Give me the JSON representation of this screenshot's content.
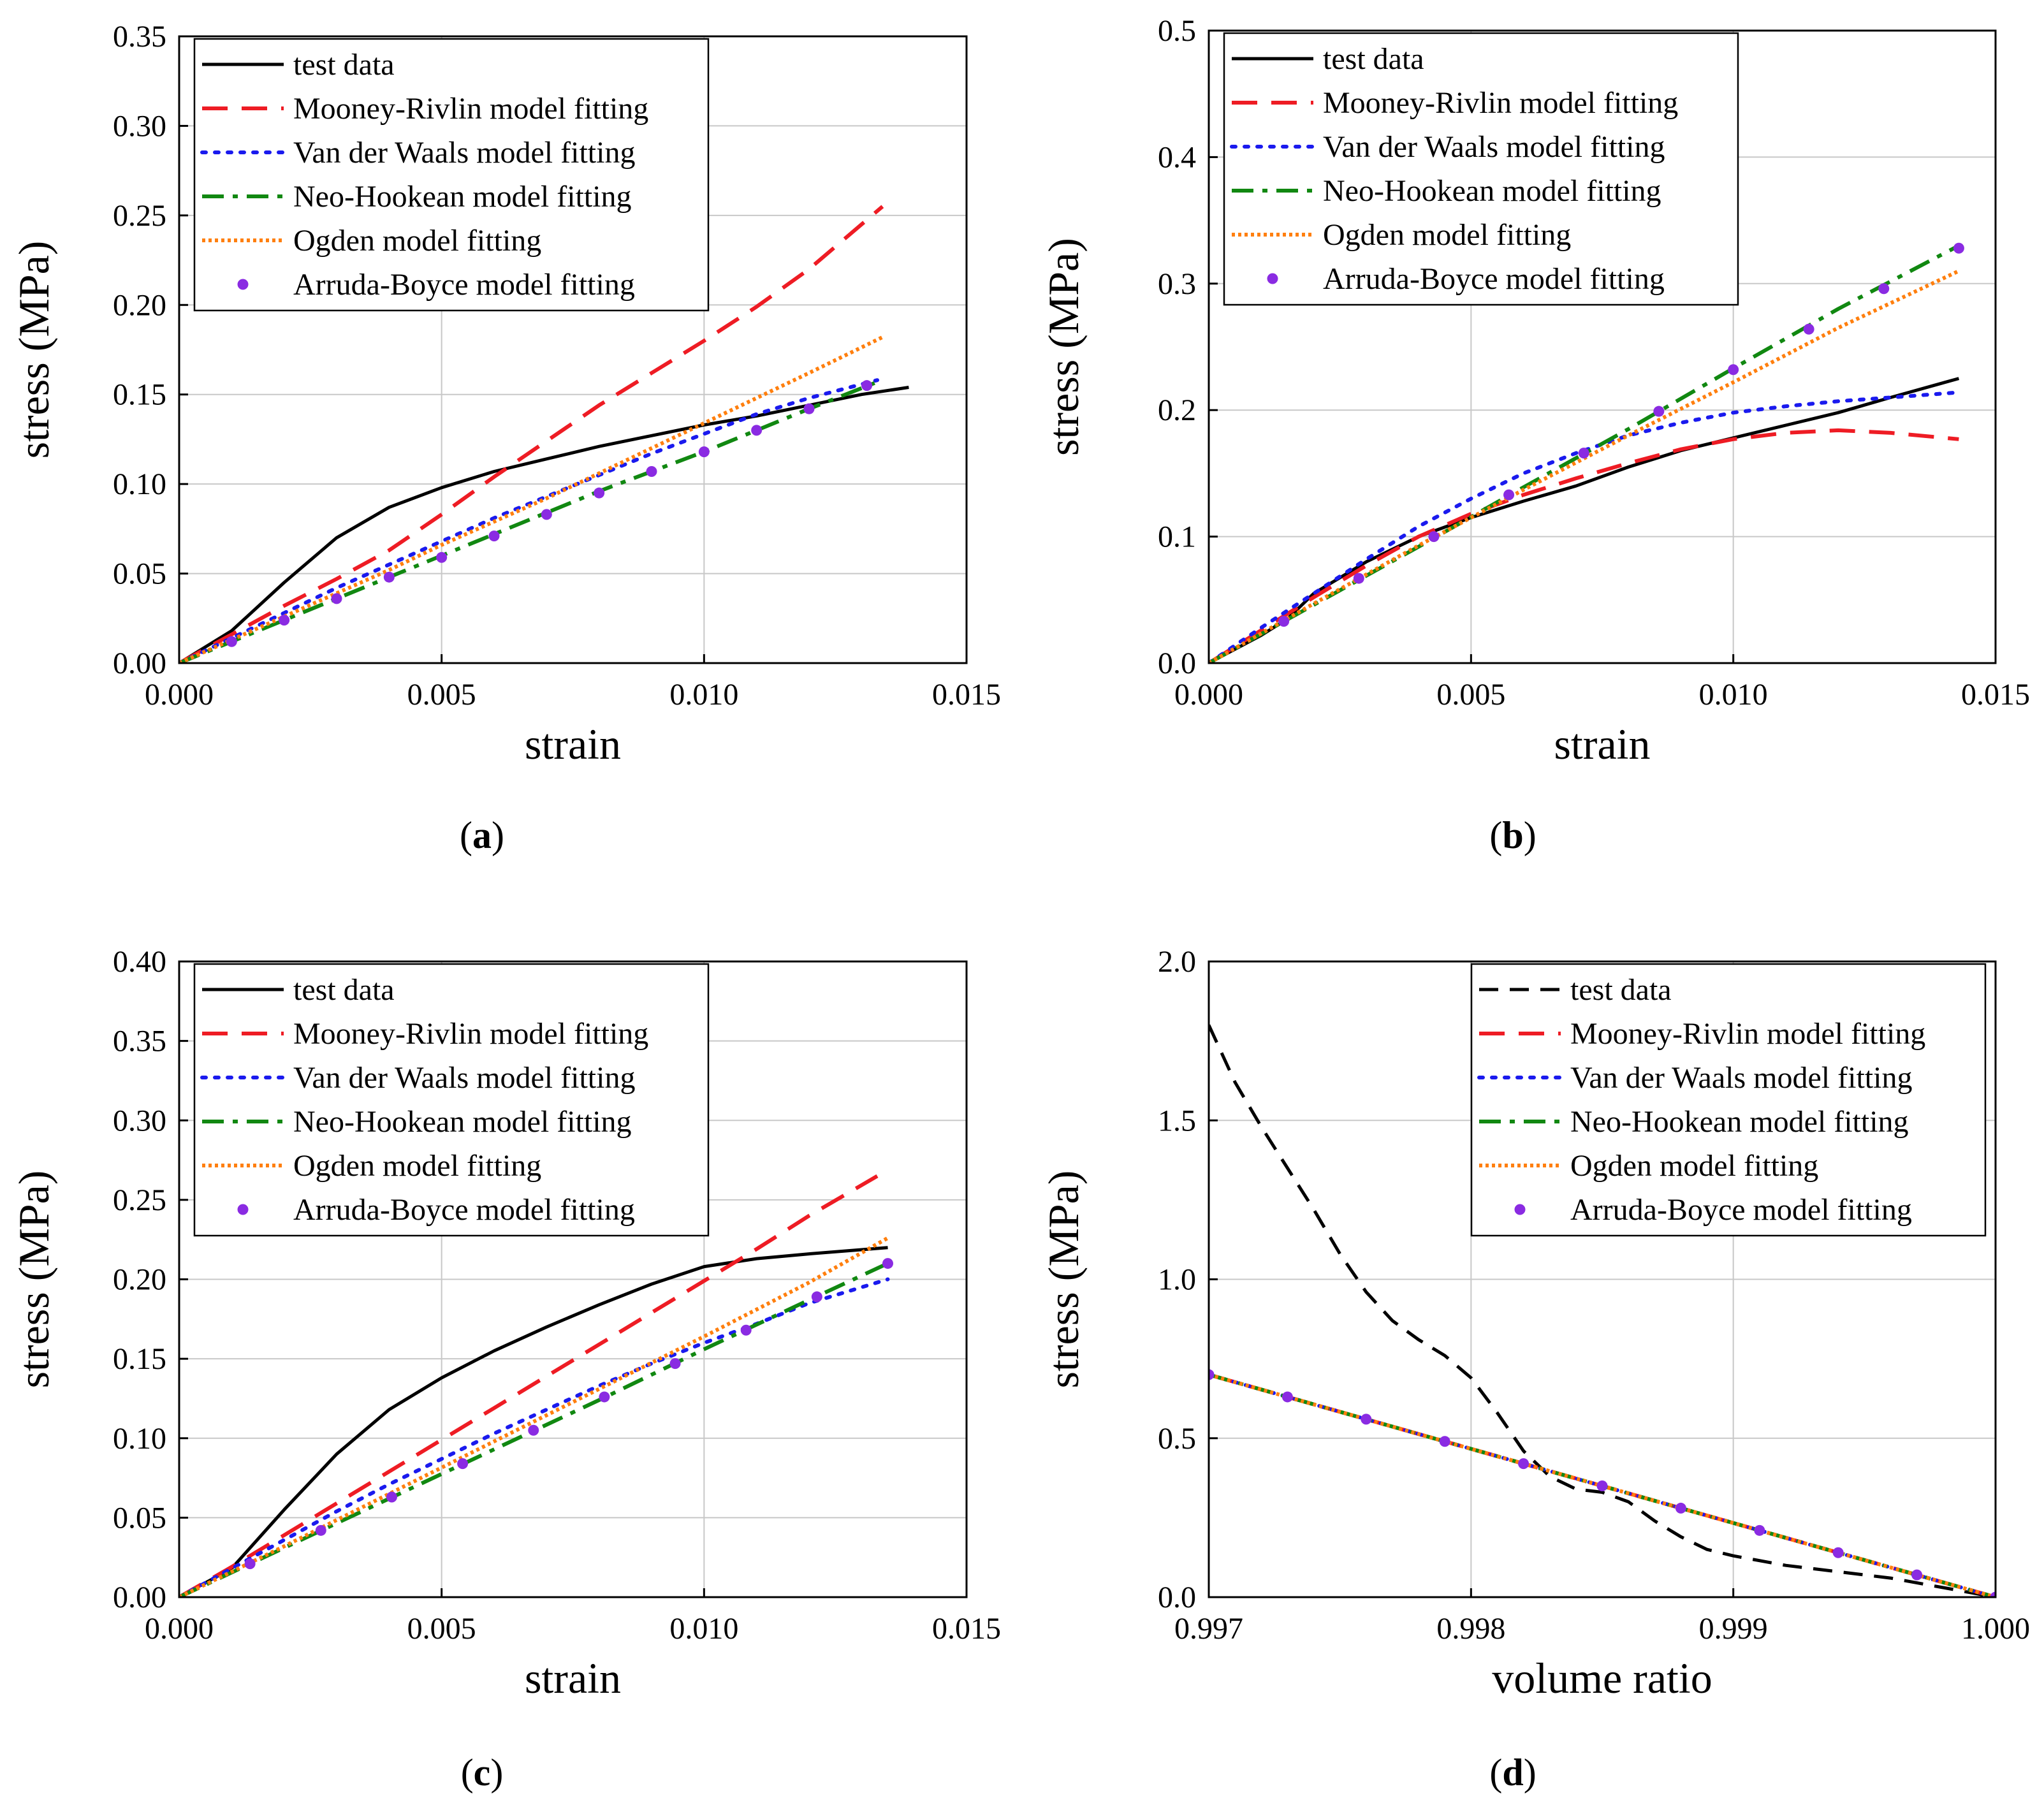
{
  "colors": {
    "test": "#000000",
    "mooney": "#ee1c24",
    "vanderwaals": "#1a1aee",
    "neohookean": "#118811",
    "ogden": "#ff7f0e",
    "arruda": "#8a2be2",
    "grid": "#c8c8c8"
  },
  "chart_data": [
    {
      "type": "line",
      "caption": "a",
      "xlabel": "strain",
      "ylabel": "stress (MPa)",
      "xlim": [
        0,
        0.015
      ],
      "ylim": [
        0,
        0.35
      ],
      "xticks": [
        "0.000",
        "0.005",
        "0.010",
        "0.015"
      ],
      "yticks": [
        "0.00",
        "0.05",
        "0.10",
        "0.15",
        "0.20",
        "0.25",
        "0.30",
        "0.35"
      ],
      "grid": true,
      "legend_position": "top-left",
      "series": [
        {
          "key": "test",
          "name": "test data",
          "style": "solid",
          "x": [
            0,
            0.001,
            0.002,
            0.003,
            0.004,
            0.005,
            0.006,
            0.007,
            0.008,
            0.009,
            0.01,
            0.011,
            0.012,
            0.013,
            0.0139
          ],
          "y": [
            0,
            0.018,
            0.045,
            0.07,
            0.087,
            0.098,
            0.107,
            0.114,
            0.121,
            0.127,
            0.133,
            0.138,
            0.144,
            0.15,
            0.154
          ]
        },
        {
          "key": "mooney",
          "name": "Mooney-Rivlin model fitting",
          "style": "dashed",
          "x": [
            0,
            0.001,
            0.002,
            0.003,
            0.004,
            0.005,
            0.006,
            0.007,
            0.008,
            0.009,
            0.01,
            0.011,
            0.012,
            0.0134
          ],
          "y": [
            0,
            0.016,
            0.032,
            0.047,
            0.063,
            0.083,
            0.104,
            0.124,
            0.144,
            0.162,
            0.18,
            0.199,
            0.22,
            0.255
          ]
        },
        {
          "key": "vanderwaals",
          "name": "Van der Waals model fitting",
          "style": "dotted",
          "x": [
            0,
            0.001,
            0.002,
            0.003,
            0.004,
            0.005,
            0.006,
            0.007,
            0.008,
            0.009,
            0.01,
            0.011,
            0.012,
            0.0133
          ],
          "y": [
            0,
            0.014,
            0.028,
            0.042,
            0.055,
            0.068,
            0.081,
            0.093,
            0.105,
            0.117,
            0.128,
            0.139,
            0.148,
            0.158
          ]
        },
        {
          "key": "neohookean",
          "name": "Neo-Hookean model fitting",
          "style": "dashdot",
          "x": [
            0,
            0.001,
            0.002,
            0.003,
            0.004,
            0.005,
            0.006,
            0.007,
            0.008,
            0.009,
            0.01,
            0.011,
            0.012,
            0.0133
          ],
          "y": [
            0,
            0.012,
            0.024,
            0.036,
            0.048,
            0.06,
            0.072,
            0.084,
            0.096,
            0.107,
            0.118,
            0.13,
            0.142,
            0.157
          ]
        },
        {
          "key": "ogden",
          "name": "Ogden model fitting",
          "style": "shortdot",
          "x": [
            0,
            0.001,
            0.002,
            0.003,
            0.004,
            0.005,
            0.006,
            0.007,
            0.008,
            0.009,
            0.01,
            0.011,
            0.012,
            0.0134
          ],
          "y": [
            0,
            0.013,
            0.026,
            0.039,
            0.052,
            0.066,
            0.079,
            0.092,
            0.106,
            0.12,
            0.134,
            0.148,
            0.162,
            0.182
          ]
        },
        {
          "key": "arruda",
          "name": "Arruda-Boyce model fitting",
          "style": "markers",
          "x": [
            0.001,
            0.002,
            0.003,
            0.004,
            0.005,
            0.006,
            0.007,
            0.008,
            0.009,
            0.01,
            0.011,
            0.012,
            0.0131
          ],
          "y": [
            0.012,
            0.024,
            0.036,
            0.048,
            0.059,
            0.071,
            0.083,
            0.095,
            0.107,
            0.118,
            0.13,
            0.142,
            0.155
          ]
        }
      ]
    },
    {
      "type": "line",
      "caption": "b",
      "xlabel": "strain",
      "ylabel": "stress (MPa)",
      "xlim": [
        0,
        0.015
      ],
      "ylim": [
        0,
        0.5
      ],
      "xticks": [
        "0.000",
        "0.005",
        "0.010",
        "0.015"
      ],
      "yticks": [
        "0.0",
        "0.1",
        "0.2",
        "0.3",
        "0.4",
        "0.5"
      ],
      "grid": true,
      "legend_position": "top-left",
      "series": [
        {
          "key": "test",
          "name": "test data",
          "style": "solid",
          "x": [
            0,
            0.001,
            0.0015,
            0.002,
            0.003,
            0.004,
            0.005,
            0.006,
            0.007,
            0.008,
            0.009,
            0.01,
            0.011,
            0.012,
            0.013,
            0.0143
          ],
          "y": [
            0,
            0.022,
            0.035,
            0.055,
            0.08,
            0.1,
            0.115,
            0.128,
            0.14,
            0.155,
            0.168,
            0.178,
            0.188,
            0.198,
            0.21,
            0.225
          ]
        },
        {
          "key": "mooney",
          "name": "Mooney-Rivlin model fitting",
          "style": "dashed",
          "x": [
            0,
            0.001,
            0.002,
            0.003,
            0.004,
            0.005,
            0.006,
            0.007,
            0.008,
            0.009,
            0.01,
            0.011,
            0.012,
            0.013,
            0.0143
          ],
          "y": [
            0,
            0.026,
            0.052,
            0.077,
            0.1,
            0.118,
            0.133,
            0.146,
            0.158,
            0.169,
            0.177,
            0.182,
            0.184,
            0.182,
            0.177
          ]
        },
        {
          "key": "vanderwaals",
          "name": "Van der Waals model fitting",
          "style": "dotted",
          "x": [
            0,
            0.001,
            0.002,
            0.003,
            0.004,
            0.005,
            0.006,
            0.007,
            0.008,
            0.009,
            0.01,
            0.011,
            0.012,
            0.013,
            0.0143
          ],
          "y": [
            0,
            0.028,
            0.055,
            0.082,
            0.108,
            0.13,
            0.15,
            0.166,
            0.18,
            0.19,
            0.198,
            0.203,
            0.207,
            0.21,
            0.214
          ]
        },
        {
          "key": "neohookean",
          "name": "Neo-Hookean model fitting",
          "style": "dashdot",
          "x": [
            0,
            0.002,
            0.004,
            0.006,
            0.008,
            0.01,
            0.012,
            0.0143
          ],
          "y": [
            0,
            0.046,
            0.092,
            0.139,
            0.185,
            0.233,
            0.28,
            0.33
          ]
        },
        {
          "key": "ogden",
          "name": "Ogden model fitting",
          "style": "shortdot",
          "x": [
            0,
            0.002,
            0.004,
            0.006,
            0.008,
            0.01,
            0.012,
            0.0143
          ],
          "y": [
            0,
            0.047,
            0.093,
            0.137,
            0.18,
            0.222,
            0.265,
            0.31
          ]
        },
        {
          "key": "arruda",
          "name": "Arruda-Boyce model fitting",
          "style": "markers",
          "x": [
            0.00143,
            0.00286,
            0.00429,
            0.00572,
            0.00715,
            0.00858,
            0.01,
            0.01144,
            0.01287,
            0.0143
          ],
          "y": [
            0.033,
            0.067,
            0.1,
            0.133,
            0.166,
            0.199,
            0.232,
            0.264,
            0.296,
            0.328
          ]
        }
      ]
    },
    {
      "type": "line",
      "caption": "c",
      "xlabel": "strain",
      "ylabel": "stress (MPa)",
      "xlim": [
        0,
        0.015
      ],
      "ylim": [
        0,
        0.4
      ],
      "xticks": [
        "0.000",
        "0.005",
        "0.010",
        "0.015"
      ],
      "yticks": [
        "0.00",
        "0.05",
        "0.10",
        "0.15",
        "0.20",
        "0.25",
        "0.30",
        "0.35",
        "0.40"
      ],
      "grid": true,
      "legend_position": "top-left",
      "series": [
        {
          "key": "test",
          "name": "test data",
          "style": "solid",
          "x": [
            0,
            0.001,
            0.002,
            0.003,
            0.004,
            0.005,
            0.006,
            0.007,
            0.008,
            0.009,
            0.01,
            0.011,
            0.012,
            0.0135
          ],
          "y": [
            0,
            0.018,
            0.055,
            0.09,
            0.118,
            0.138,
            0.155,
            0.17,
            0.184,
            0.197,
            0.208,
            0.213,
            0.216,
            0.22
          ]
        },
        {
          "key": "mooney",
          "name": "Mooney-Rivlin model fitting",
          "style": "dashed",
          "x": [
            0,
            0.001,
            0.002,
            0.003,
            0.004,
            0.005,
            0.006,
            0.007,
            0.008,
            0.009,
            0.01,
            0.011,
            0.012,
            0.0133
          ],
          "y": [
            0,
            0.019,
            0.039,
            0.059,
            0.079,
            0.099,
            0.119,
            0.139,
            0.159,
            0.179,
            0.199,
            0.219,
            0.24,
            0.265
          ]
        },
        {
          "key": "vanderwaals",
          "name": "Van der Waals model fitting",
          "style": "dotted",
          "x": [
            0,
            0.001,
            0.002,
            0.003,
            0.004,
            0.005,
            0.006,
            0.007,
            0.008,
            0.009,
            0.01,
            0.011,
            0.012,
            0.0135
          ],
          "y": [
            0,
            0.018,
            0.036,
            0.054,
            0.071,
            0.087,
            0.103,
            0.118,
            0.133,
            0.147,
            0.16,
            0.172,
            0.185,
            0.2
          ]
        },
        {
          "key": "neohookean",
          "name": "Neo-Hookean model fitting",
          "style": "dashdot",
          "x": [
            0,
            0.002,
            0.004,
            0.006,
            0.008,
            0.01,
            0.012,
            0.0135
          ],
          "y": [
            0,
            0.031,
            0.062,
            0.093,
            0.124,
            0.156,
            0.187,
            0.21
          ]
        },
        {
          "key": "ogden",
          "name": "Ogden model fitting",
          "style": "shortdot",
          "x": [
            0,
            0.002,
            0.004,
            0.006,
            0.008,
            0.01,
            0.012,
            0.0135
          ],
          "y": [
            0,
            0.032,
            0.065,
            0.098,
            0.131,
            0.164,
            0.198,
            0.226
          ]
        },
        {
          "key": "arruda",
          "name": "Arruda-Boyce model fitting",
          "style": "markers",
          "x": [
            0.00135,
            0.0027,
            0.00405,
            0.0054,
            0.00675,
            0.0081,
            0.00945,
            0.0108,
            0.01215,
            0.0135
          ],
          "y": [
            0.021,
            0.042,
            0.063,
            0.084,
            0.105,
            0.126,
            0.147,
            0.168,
            0.189,
            0.21
          ]
        }
      ]
    },
    {
      "type": "line",
      "caption": "d",
      "xlabel": "volume ratio",
      "ylabel": "stress (MPa)",
      "xlim": [
        0.997,
        1.0
      ],
      "ylim": [
        0,
        2.0
      ],
      "xticks": [
        "0.997",
        "0.998",
        "0.999",
        "1.000"
      ],
      "yticks": [
        "0.0",
        "0.5",
        "1.0",
        "1.5",
        "2.0"
      ],
      "grid": true,
      "legend_position": "top-right",
      "series": [
        {
          "key": "test",
          "name": "test data",
          "style": "dashed-black",
          "x": [
            0.997,
            0.9971,
            0.9972,
            0.9973,
            0.9974,
            0.9975,
            0.9976,
            0.9977,
            0.9978,
            0.9979,
            0.998,
            0.9981,
            0.9982,
            0.9983,
            0.9984,
            0.9985,
            0.9986,
            0.9987,
            0.9988,
            0.9989,
            0.999,
            0.9992,
            0.9994,
            0.9996,
            0.9998,
            1.0
          ],
          "y": [
            1.8,
            1.62,
            1.48,
            1.35,
            1.22,
            1.08,
            0.96,
            0.87,
            0.81,
            0.76,
            0.69,
            0.58,
            0.46,
            0.38,
            0.34,
            0.33,
            0.3,
            0.24,
            0.19,
            0.15,
            0.13,
            0.1,
            0.08,
            0.06,
            0.03,
            0.0
          ]
        },
        {
          "key": "mooney",
          "name": "Mooney-Rivlin model fitting",
          "style": "dashed",
          "x": [
            0.997,
            1.0
          ],
          "y": [
            0.7,
            0.0
          ]
        },
        {
          "key": "vanderwaals",
          "name": "Van der Waals model fitting",
          "style": "dotted",
          "x": [
            0.997,
            1.0
          ],
          "y": [
            0.7,
            0.0
          ]
        },
        {
          "key": "neohookean",
          "name": "Neo-Hookean model fitting",
          "style": "dashdot",
          "x": [
            0.997,
            1.0
          ],
          "y": [
            0.7,
            0.0
          ]
        },
        {
          "key": "ogden",
          "name": "Ogden model fitting",
          "style": "shortdot",
          "x": [
            0.997,
            1.0
          ],
          "y": [
            0.7,
            0.0
          ]
        },
        {
          "key": "arruda",
          "name": "Arruda-Boyce model fitting",
          "style": "markers",
          "x": [
            0.997,
            0.9973,
            0.9976,
            0.9979,
            0.9982,
            0.9985,
            0.9988,
            0.9991,
            0.9994,
            0.9997,
            1.0
          ],
          "y": [
            0.7,
            0.63,
            0.56,
            0.49,
            0.42,
            0.35,
            0.28,
            0.21,
            0.14,
            0.07,
            0.0
          ]
        }
      ]
    }
  ]
}
